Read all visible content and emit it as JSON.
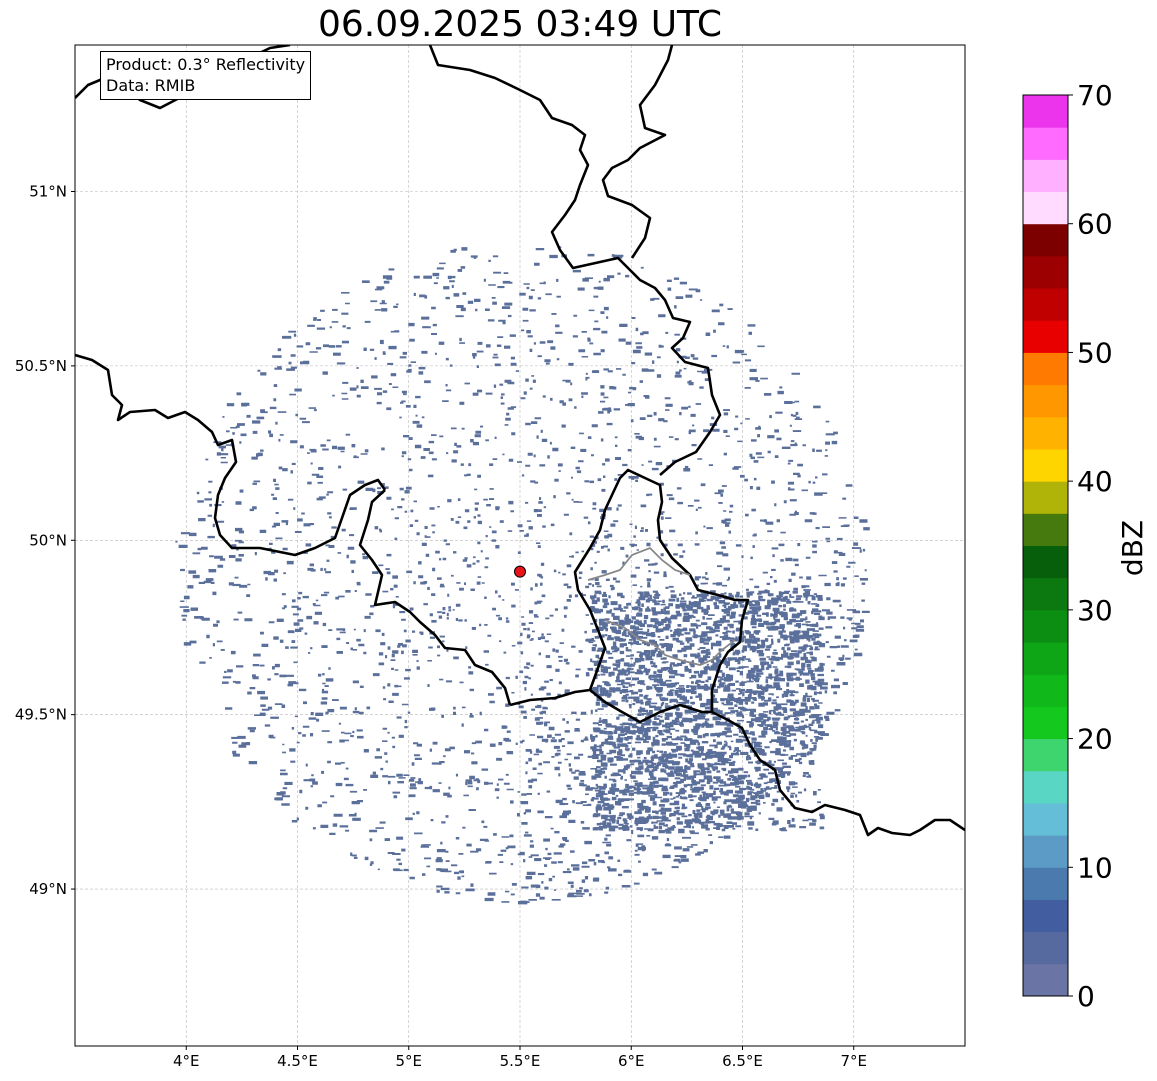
{
  "title": "06.09.2025 03:49 UTC",
  "info": {
    "product": "Product: 0.3° Reflectivity",
    "data": "Data: RMIB"
  },
  "map": {
    "projection": "PlateCarree",
    "extent_lon": [
      3.5,
      7.5
    ],
    "extent_lat": [
      48.55,
      51.42
    ],
    "lon_ticks": [
      {
        "value": 4.0,
        "label": "4°E"
      },
      {
        "value": 4.5,
        "label": "4.5°E"
      },
      {
        "value": 5.0,
        "label": "5°E"
      },
      {
        "value": 5.5,
        "label": "5.5°E"
      },
      {
        "value": 6.0,
        "label": "6°E"
      },
      {
        "value": 6.5,
        "label": "6.5°E"
      },
      {
        "value": 7.0,
        "label": "7°E"
      }
    ],
    "lat_ticks": [
      {
        "value": 51.0,
        "label": "51°N"
      },
      {
        "value": 50.5,
        "label": "50.5°N"
      },
      {
        "value": 50.0,
        "label": "50°N"
      },
      {
        "value": 49.5,
        "label": "49.5°N"
      },
      {
        "value": 49.0,
        "label": "49°N"
      }
    ],
    "radar_site": {
      "lon": 5.5,
      "lat": 49.91,
      "color": "#e8141a"
    },
    "echo_color": "#5b6f9b",
    "grid": true
  },
  "colorbar": {
    "label": "dBZ",
    "min": 0,
    "max": 70,
    "step": 2.5,
    "ticks": [
      "0",
      "10",
      "20",
      "30",
      "40",
      "50",
      "60",
      "70"
    ],
    "colors": [
      "#6a75a6",
      "#566a9f",
      "#435ea0",
      "#4a7aae",
      "#5b9bc6",
      "#64bed7",
      "#5ad6c4",
      "#3ed46e",
      "#14c81e",
      "#10b81a",
      "#0ea516",
      "#0c8e12",
      "#0b7910",
      "#075e0b",
      "#467a0e",
      "#b1b408",
      "#ffd500",
      "#ffb200",
      "#ff9700",
      "#ff7a00",
      "#e80000",
      "#c00000",
      "#9d0000",
      "#7c0000",
      "#ffdcff",
      "#ffb0ff",
      "#ff6bff",
      "#ec34ec"
    ]
  }
}
